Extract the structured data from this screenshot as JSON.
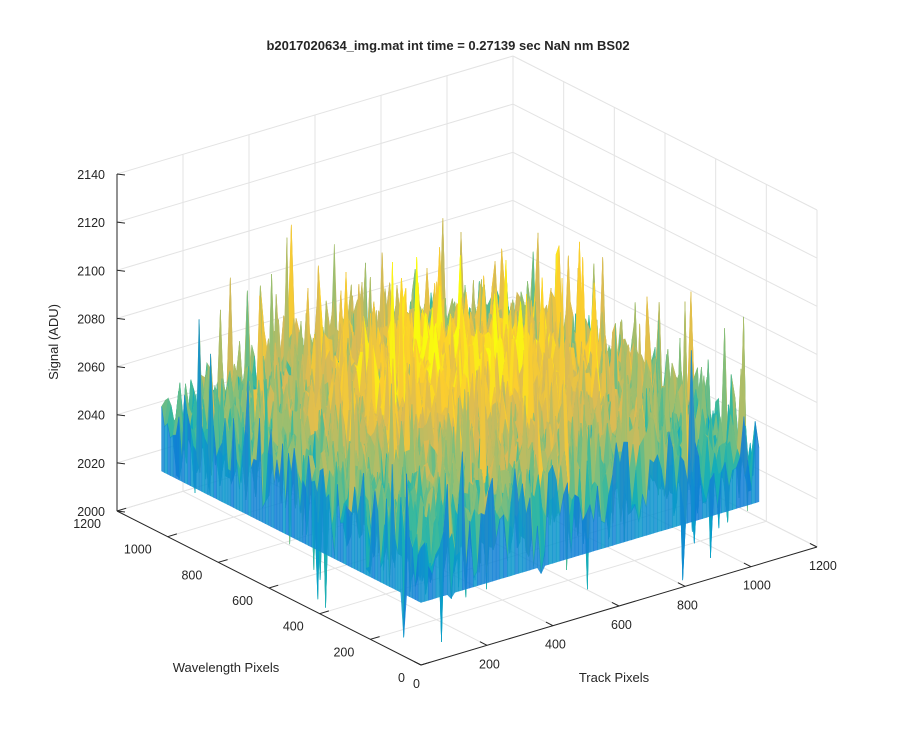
{
  "chart_data": {
    "type": "surface",
    "title": "b2017020634_img.mat int time = 0.27139 sec  NaN nm BS02",
    "xlabel": "Track Pixels",
    "ylabel": "Wavelength Pixels",
    "zlabel": "Signal (ADU)",
    "xlim": [
      0,
      1200
    ],
    "ylim": [
      0,
      1200
    ],
    "zlim": [
      2000,
      2140
    ],
    "x_ticks": [
      0,
      200,
      400,
      600,
      800,
      1000,
      1200
    ],
    "y_ticks": [
      0,
      200,
      400,
      600,
      800,
      1000,
      1200
    ],
    "z_ticks": [
      2000,
      2020,
      2040,
      2060,
      2080,
      2100,
      2120,
      2140
    ],
    "data_extent": {
      "x": [
        0,
        1024
      ],
      "y": [
        0,
        1024
      ]
    },
    "baseline_signal": 2040,
    "signal_center_peak": 2075,
    "noise_spread": 25,
    "signal_max": 2140,
    "signal_min": 2000,
    "colormap": "parula",
    "grid": true,
    "box": false
  }
}
